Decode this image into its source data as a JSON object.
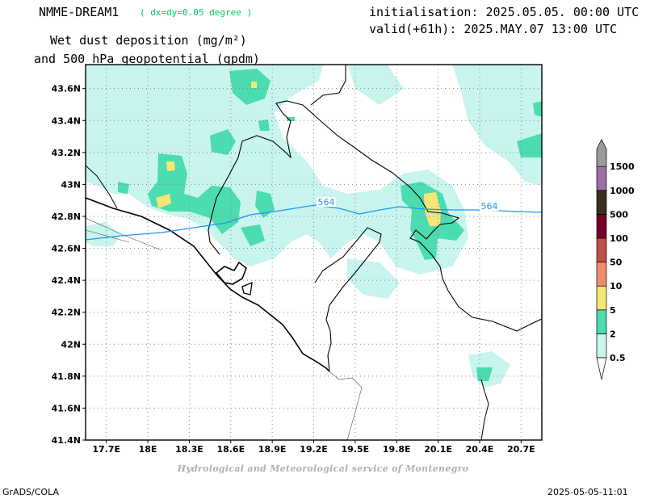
{
  "header": {
    "model": "NMME-DREAM1",
    "resolution": "( dx=dy=0.05 degree )",
    "variable_line1": "Wet dust deposition (mg/m²)",
    "variable_line2": "and 500 hPa geopotential (gpdm)",
    "init": "initialisation: 2025.05.05. 00:00 UTC",
    "valid": "valid(+61h): 2025.MAY.07 13:00 UTC"
  },
  "map": {
    "lon_ticks": [
      "17.7E",
      "18E",
      "18.3E",
      "18.6E",
      "18.9E",
      "19.2E",
      "19.5E",
      "19.8E",
      "20.1E",
      "20.4E",
      "20.7E"
    ],
    "lat_ticks": [
      "43.6N",
      "43.4N",
      "43.2N",
      "43N",
      "42.8N",
      "42.6N",
      "42.4N",
      "42.2N",
      "42N",
      "41.8N",
      "41.6N",
      "41.4N"
    ],
    "contour_label": "564",
    "contour_color": "#1e96f0",
    "grid_style": "dotted"
  },
  "legend": {
    "levels": [
      "0.5",
      "2",
      "5",
      "10",
      "50",
      "100",
      "500",
      "1000",
      "1500"
    ],
    "colors": [
      "#c8f5ee",
      "#4bdcaf",
      "#f5e678",
      "#f08c6e",
      "#c0504b",
      "#78002d",
      "#3c2d1e",
      "#9b6ea5",
      "#9b9b9b"
    ]
  },
  "credit": "Hydrological and Meteorological service of Montenegro",
  "footer": {
    "left": "GrADS/COLA",
    "right": "2025-05-05-11:01"
  }
}
